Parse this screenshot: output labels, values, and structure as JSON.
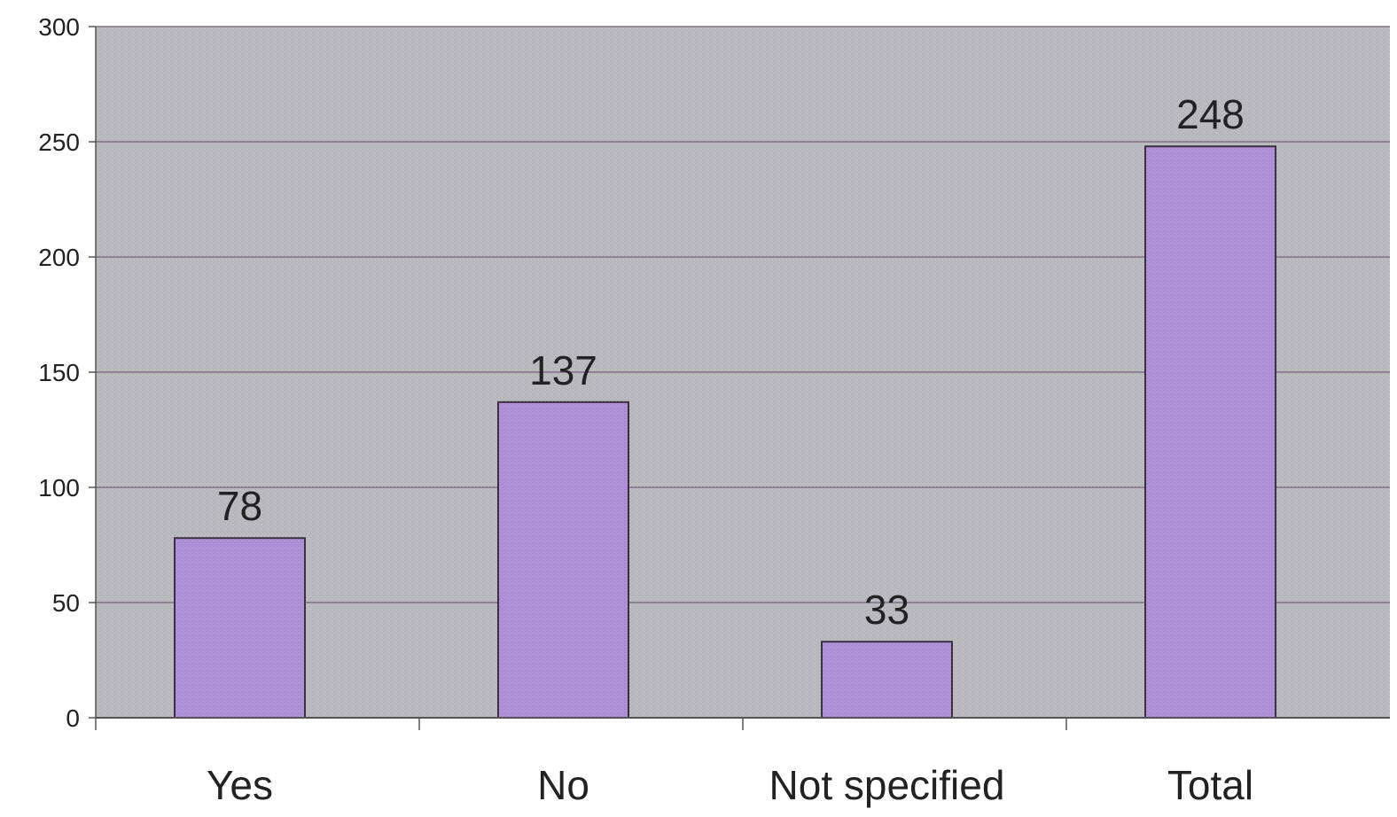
{
  "chart_data": {
    "type": "bar",
    "title": "",
    "xlabel": "",
    "ylabel": "",
    "categories": [
      "Yes",
      "No",
      "Not specified",
      "Total"
    ],
    "values": [
      78,
      137,
      33,
      248
    ],
    "data_labels": [
      "78",
      "137",
      "33",
      "248"
    ],
    "y_ticks": [
      0,
      50,
      100,
      150,
      200,
      250,
      300
    ],
    "y_tick_labels": [
      "0",
      "50",
      "100",
      "150",
      "200",
      "250",
      "300"
    ],
    "ylim": [
      0,
      300
    ],
    "grid": true,
    "legend": "none",
    "colors": {
      "plot_background": "#b9b9bd",
      "bar_fill": "#b092d8",
      "bar_stroke": "#3a3040",
      "gridline": "#7e6f86",
      "axis": "#555555",
      "text": "#222222"
    }
  }
}
